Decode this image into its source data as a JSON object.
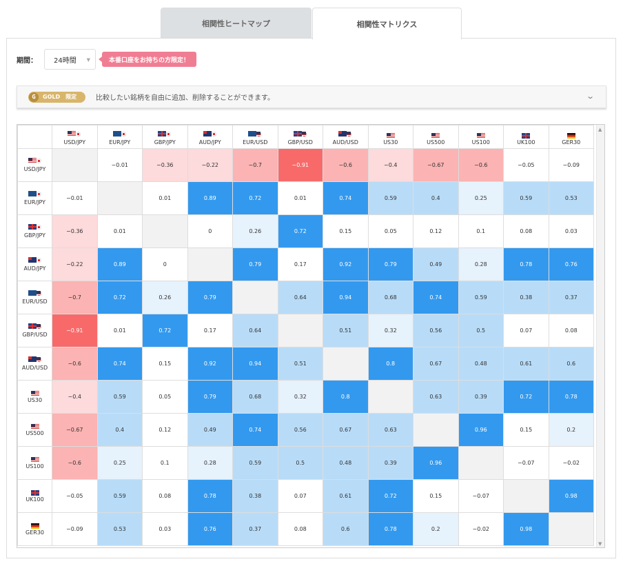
{
  "tabs": [
    {
      "label": "相関性ヒートマップ"
    },
    {
      "label": "相関性マトリクス"
    }
  ],
  "period": {
    "label": "期間：",
    "value": "24時間",
    "notice": "本番口座をお持ちの方限定！"
  },
  "gold": {
    "badge": "GOLD",
    "limited": "限定",
    "text": "比較したい銘柄を自由に追加、削除することができます。"
  },
  "matrix": {
    "symbols": [
      {
        "label": "USD/JPY",
        "flags": [
          "us",
          "jp"
        ]
      },
      {
        "label": "EUR/JPY",
        "flags": [
          "eu",
          "jp"
        ]
      },
      {
        "label": "GBP/JPY",
        "flags": [
          "gb",
          "jp"
        ]
      },
      {
        "label": "AUD/JPY",
        "flags": [
          "au",
          "jp"
        ]
      },
      {
        "label": "EUR/USD",
        "flags": [
          "eu",
          "us"
        ]
      },
      {
        "label": "GBP/USD",
        "flags": [
          "gb",
          "us"
        ]
      },
      {
        "label": "AUD/USD",
        "flags": [
          "au",
          "us"
        ]
      },
      {
        "label": "US30",
        "flags": [
          "us"
        ]
      },
      {
        "label": "US500",
        "flags": [
          "us"
        ]
      },
      {
        "label": "US100",
        "flags": [
          "us"
        ]
      },
      {
        "label": "UK100",
        "flags": [
          "gb"
        ]
      },
      {
        "label": "GER30",
        "flags": [
          "de"
        ]
      }
    ],
    "values": [
      [
        null,
        -0.01,
        -0.36,
        -0.22,
        -0.7,
        -0.91,
        -0.6,
        -0.4,
        -0.67,
        -0.6,
        -0.05,
        -0.09
      ],
      [
        -0.01,
        null,
        0.01,
        0.89,
        0.72,
        0.01,
        0.74,
        0.59,
        0.4,
        0.25,
        0.59,
        0.53
      ],
      [
        -0.36,
        0.01,
        null,
        0,
        0.26,
        0.72,
        0.15,
        0.05,
        0.12,
        0.1,
        0.08,
        0.03
      ],
      [
        -0.22,
        0.89,
        0,
        null,
        0.79,
        0.17,
        0.92,
        0.79,
        0.49,
        0.28,
        0.78,
        0.76
      ],
      [
        -0.7,
        0.72,
        0.26,
        0.79,
        null,
        0.64,
        0.94,
        0.68,
        0.74,
        0.59,
        0.38,
        0.37
      ],
      [
        -0.91,
        0.01,
        0.72,
        0.17,
        0.64,
        null,
        0.51,
        0.32,
        0.56,
        0.5,
        0.07,
        0.08
      ],
      [
        -0.6,
        0.74,
        0.15,
        0.92,
        0.94,
        0.51,
        null,
        0.8,
        0.67,
        0.48,
        0.61,
        0.6
      ],
      [
        -0.4,
        0.59,
        0.05,
        0.79,
        0.68,
        0.32,
        0.8,
        null,
        0.63,
        0.39,
        0.72,
        0.78
      ],
      [
        -0.67,
        0.4,
        0.12,
        0.49,
        0.74,
        0.56,
        0.67,
        0.63,
        null,
        0.96,
        0.15,
        0.2
      ],
      [
        -0.6,
        0.25,
        0.1,
        0.28,
        0.59,
        0.5,
        0.48,
        0.39,
        0.96,
        null,
        -0.07,
        -0.02
      ],
      [
        -0.05,
        0.59,
        0.08,
        0.78,
        0.38,
        0.07,
        0.61,
        0.72,
        0.15,
        -0.07,
        null,
        0.98
      ],
      [
        -0.09,
        0.53,
        0.03,
        0.76,
        0.37,
        0.08,
        0.6,
        0.78,
        0.2,
        -0.02,
        0.98,
        null
      ]
    ],
    "colors": {
      "strong_pos": "#3399ee",
      "mid_pos": "#b8dcf8",
      "weak_pos": "#e6f2fc",
      "neutral": "#ffffff",
      "weak_neg": "#fddadb",
      "mid_neg": "#fbb3b3",
      "strong_neg": "#f86a6a",
      "diag": "#f2f2f2"
    }
  }
}
